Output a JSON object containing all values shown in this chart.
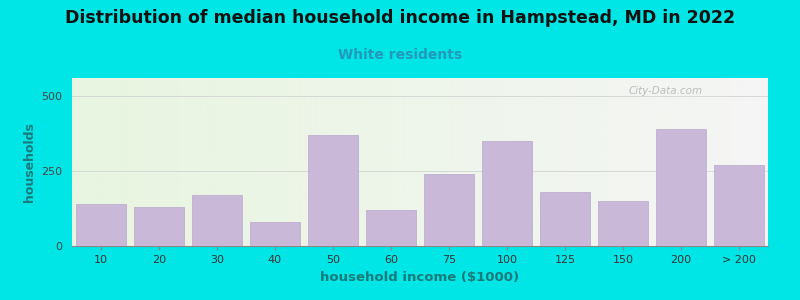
{
  "title": "Distribution of median household income in Hampstead, MD in 2022",
  "subtitle": "White residents",
  "xlabel": "household income ($1000)",
  "ylabel": "households",
  "background_outer": "#00e5e5",
  "bar_color": "#c9b8d8",
  "bar_edge_color": "#b8a8cc",
  "title_fontsize": 12.5,
  "subtitle_fontsize": 10,
  "subtitle_color": "#2299bb",
  "ylabel_color": "#1a7a7a",
  "xlabel_color": "#1a7a7a",
  "categories": [
    "10",
    "20",
    "30",
    "40",
    "50",
    "60",
    "75",
    "100",
    "125",
    "150",
    "200",
    "> 200"
  ],
  "values": [
    140,
    130,
    170,
    80,
    370,
    120,
    240,
    350,
    180,
    150,
    390,
    270
  ],
  "ylim": [
    0,
    560
  ],
  "yticks": [
    0,
    250,
    500
  ],
  "watermark": "City-Data.com"
}
